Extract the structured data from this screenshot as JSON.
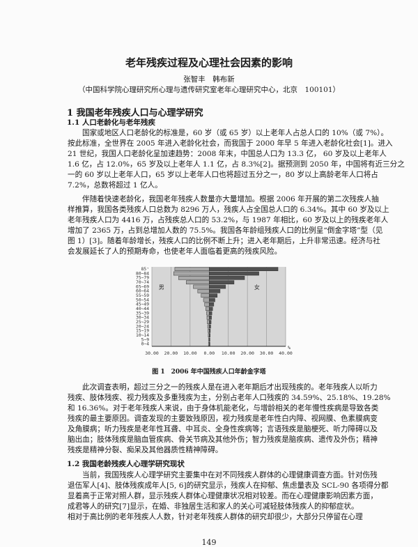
{
  "title": "老年残疾过程及心理社会因素的影响",
  "authors": "张智丰　韩布新",
  "affiliation": "（中国科学院心理研究所心理与遗传研究室老年心理研究中心，北京　100101）",
  "section1": {
    "heading": "1 我国老年残疾人口与心理学研究",
    "sub1": {
      "heading": "1.1 人口老龄化与老年残疾",
      "p1": [
        "国家或地区人口老龄化的标准是，60 岁（或 65 岁）以上老年人占总人口的 10%（或 7%）。",
        "按此标准，全世界在 2005 年进入老龄化社会，而我国于 2000 年早 5 年进入老龄化社会[1]。进入",
        "21 世纪，我国人口老龄化呈加速趋势：2008 年末，中国总人口为 13.3 亿， 60 岁及以上老年人",
        "1.6 亿，占 12.0%，65 岁及以上老年人 1.1 亿，占 8.3%[2]。据预测到 2050 年，中国将有近三分之",
        "一的 60 岁以上老年人口，65 岁以上老年人口也将超过五分之一，80 岁以上高龄老年人口将占",
        "7.2%，总数将超过 1 亿人。"
      ],
      "p2": [
        "伴随着快速老龄化，我国老年残疾人数量亦大量增加。根据 2006 年开展的第二次残疾人抽",
        "样推算，我国各类残疾人口总数为 8296 万人，残疾人占全国总人口的 6.34%。其中 60 岁及以上",
        "老年残疾人口为 4416 万，占残疾总人口的 53.2%，与 1987 年相比，60 岁及以上的残疾老年人",
        "增加了 2365 万，占到总增加人数的 75.5%。我国各年龄组残疾人口的比例呈“倒金字塔”型（见",
        "图 1）[3]。随着年龄增长，残疾人口的比例不断上升；进入老年期后，上升非常迅速。经济与社",
        "会发展延长了人的预期寿命，也使老年人面临着更高的残疾风险。"
      ],
      "figure_caption": "图 1　2006 年中国残疾人口年龄金字塔",
      "p3": [
        "此次调查表明，超过三分之一的残疾人是在进入老年期后才出现残疾的。老年残疾人以听力",
        "残疾、肢体残疾、视力残疾及多重残疾为主，分别占老年人口残疾的 34.59%、25.18%、19.28%",
        "和 16.36%。对于老年残疾人来说，由于身体机能老化，与增龄相关的老年慢性疾病是导致各类",
        "残疾的最主要原因。调查发现的主要致残原因，视力残疾是老年性白内障、视网膜、色素膜病变",
        "及角膜病；听力残疾是老年性耳聋、中耳炎、全身性疾病等；言语残疾是脑梗死、听力障碍以及",
        "脑出血；肢体残疾是脑血管疾病、骨关节病及其他外伤；智力残疾是脑疾病、遗传及外伤；精神",
        "残疾是精神分裂、痴呆及其他器质性精神障碍。"
      ]
    },
    "sub2": {
      "heading": "1.2 我国老龄残疾人心理学研究现状",
      "p1": [
        "当前，我国残疾人心理学研究主要集中在对不同残疾人群体的心理健康调查方面。针对伤残",
        "退伍军人[4]、肢体残疾成年人[5, 6]的研究显示，残疾人在抑郁、焦虑量表及 SCL-90 各项得分都",
        "显着高于正常对照人群，显示残疾人群体心理健康状况相对较差。而在心理健康影响因素方面，",
        "成君等人的研究[7]显示，在婚、非独居生活和家人的关心可减轻肢体残疾人的抑郁症状。",
        "相对于高比例的老年残疾人人数，针对老年残疾人群体的研究却很少，大部分只停留在心理"
      ]
    }
  },
  "page_number": "149",
  "chart_data": {
    "type": "bar",
    "orientation": "horizontal-population-pyramid",
    "categories": [
      "85+",
      "80-84",
      "75-79",
      "70-74",
      "65-69",
      "60-64",
      "55-59",
      "50-54",
      "45-49",
      "40-44",
      "35-39",
      "30-34",
      "25-29",
      "20-24",
      "15-19",
      "10-14",
      "5-9",
      "0-4"
    ],
    "category_labels": [
      "85⁺",
      "80~84",
      "75~79",
      "70~74",
      "65~69",
      "60~64",
      "55~59",
      "50~54",
      "45~49",
      "40~44",
      "35~39",
      "30~34",
      "25~29",
      "20~24",
      "15~19",
      "10~14",
      "5~9",
      "0~4"
    ],
    "series": [
      {
        "name": "男",
        "side": "left",
        "color": "#a8a8a8",
        "values": [
          18,
          18.6,
          16,
          12,
          8.3,
          6,
          4.2,
          3,
          2.4,
          1.8,
          1.4,
          1.2,
          1.0,
          0.8,
          0.6,
          0.5,
          0.4,
          0.4
        ]
      },
      {
        "name": "女",
        "side": "right",
        "color": "#505050",
        "values": [
          36,
          26,
          18.5,
          13,
          8.6,
          5.7,
          4.2,
          3,
          2.4,
          1.8,
          1.4,
          1.2,
          1.0,
          0.8,
          0.6,
          0.5,
          0.4,
          0.4
        ]
      }
    ],
    "xtick_labels": [
      "30.00",
      "20.00",
      "10.00",
      "0.00",
      "10.00",
      "20.00",
      "30.00",
      "40.00"
    ],
    "xunit": "%",
    "xlim": [
      -30,
      40
    ],
    "grid": true,
    "background": "#d6d6d6"
  }
}
